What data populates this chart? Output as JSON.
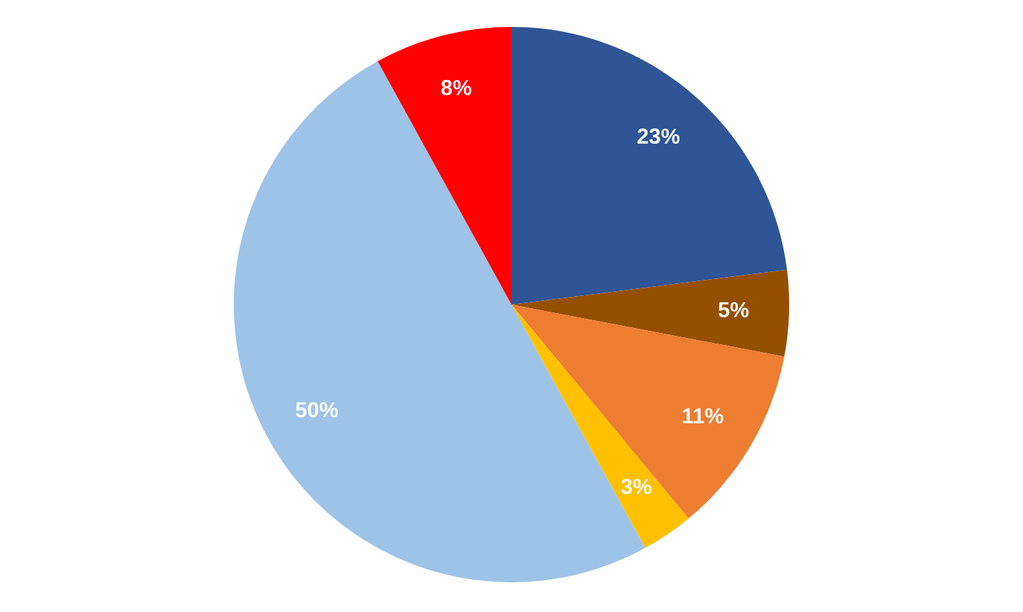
{
  "chart_data": {
    "type": "pie",
    "categories": [
      null,
      null,
      null,
      null,
      null,
      null
    ],
    "values": [
      23,
      5,
      11,
      3,
      50,
      8
    ],
    "colors": [
      "#2f5597",
      "#954f00",
      "#ed7d31",
      "#ffc000",
      "#9dc3e6",
      "#ff0000"
    ],
    "value_labels": [
      "23%",
      "5%",
      "11%",
      "3%",
      "50%",
      "8%"
    ]
  }
}
